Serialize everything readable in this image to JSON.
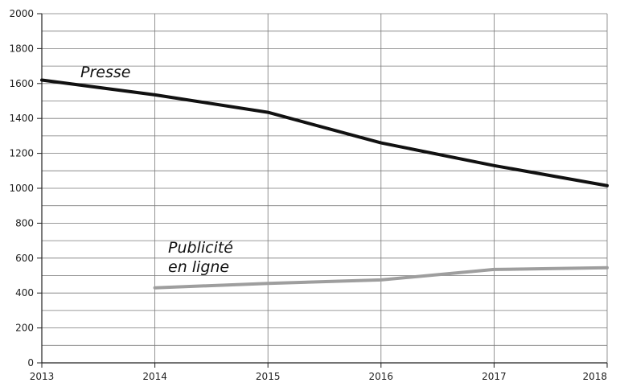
{
  "chart_data": {
    "type": "line",
    "title": "",
    "xlabel": "",
    "ylabel": "",
    "x": [
      2013,
      2014,
      2015,
      2016,
      2017,
      2018
    ],
    "xlim": [
      2013,
      2018
    ],
    "ylim": [
      0,
      2000
    ],
    "y_ticks": [
      0,
      200,
      400,
      600,
      800,
      1000,
      1200,
      1400,
      1600,
      1800,
      2000
    ],
    "y_minor_grid_step": 100,
    "grid": true,
    "legend": "none",
    "series": [
      {
        "name": "Presse",
        "label_lines": [
          "Presse"
        ],
        "color": "#111111",
        "x": [
          2013,
          2014,
          2015,
          2016,
          2017,
          2018
        ],
        "values": [
          1620,
          1535,
          1435,
          1260,
          1130,
          1015
        ]
      },
      {
        "name": "Publicité en ligne",
        "label_lines": [
          "Publicité",
          "en ligne"
        ],
        "color": "#9e9e9e",
        "x": [
          2014,
          2015,
          2016,
          2017,
          2018
        ],
        "values": [
          430,
          455,
          475,
          535,
          545
        ]
      }
    ]
  }
}
